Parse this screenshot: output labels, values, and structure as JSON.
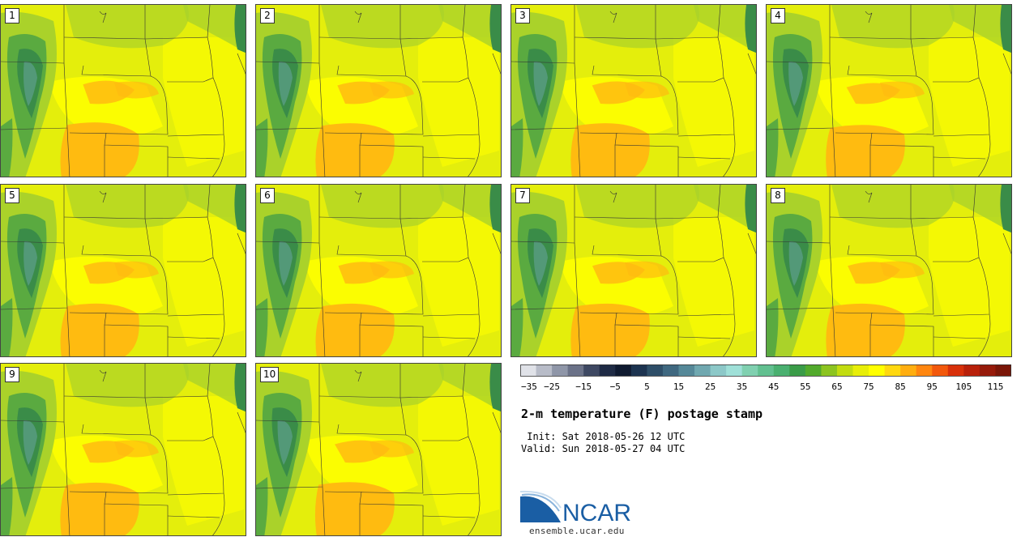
{
  "panels": [
    {
      "label": "1"
    },
    {
      "label": "2"
    },
    {
      "label": "3"
    },
    {
      "label": "4"
    },
    {
      "label": "5"
    },
    {
      "label": "6"
    },
    {
      "label": "7"
    },
    {
      "label": "8"
    },
    {
      "label": "9"
    },
    {
      "label": "10"
    }
  ],
  "colorbar": {
    "tick_labels": [
      "−35",
      "−25",
      "−15",
      "−5",
      "5",
      "15",
      "25",
      "35",
      "45",
      "55",
      "65",
      "75",
      "85",
      "95",
      "105",
      "115"
    ],
    "colors": [
      "#e0e2e8",
      "#b8bcc8",
      "#8f96a8",
      "#6b7288",
      "#3e4862",
      "#1f2b45",
      "#0f1a30",
      "#1c3350",
      "#2e4e68",
      "#3f6880",
      "#558898",
      "#70a8b0",
      "#8cc8c8",
      "#9fe0d8",
      "#80d0b0",
      "#62c090",
      "#4ab070",
      "#3a9c48",
      "#52aa2c",
      "#8cc420",
      "#c2dc10",
      "#e8ee08",
      "#ffff00",
      "#ffd810",
      "#ffae10",
      "#ff8610",
      "#f2580c",
      "#d8300a",
      "#b8200a",
      "#961a0a",
      "#7a1608"
    ]
  },
  "info": {
    "title": "2-m temperature (F) postage stamp",
    "init": " Init: Sat 2018-05-26 12 UTC",
    "valid": "Valid: Sun 2018-05-27 04 UTC"
  },
  "logo": {
    "text": "NCAR",
    "url": "ensemble.ucar.edu",
    "color": "#1a5ea4"
  },
  "map_colors": {
    "base": "#e4ee0c",
    "warm": "#ffff00",
    "hot": "#ffbb10",
    "cool": "#aad22a",
    "green": "#5aaa40",
    "dark": "#3a8c48",
    "teal": "#5a9c84",
    "border": "#333333"
  }
}
